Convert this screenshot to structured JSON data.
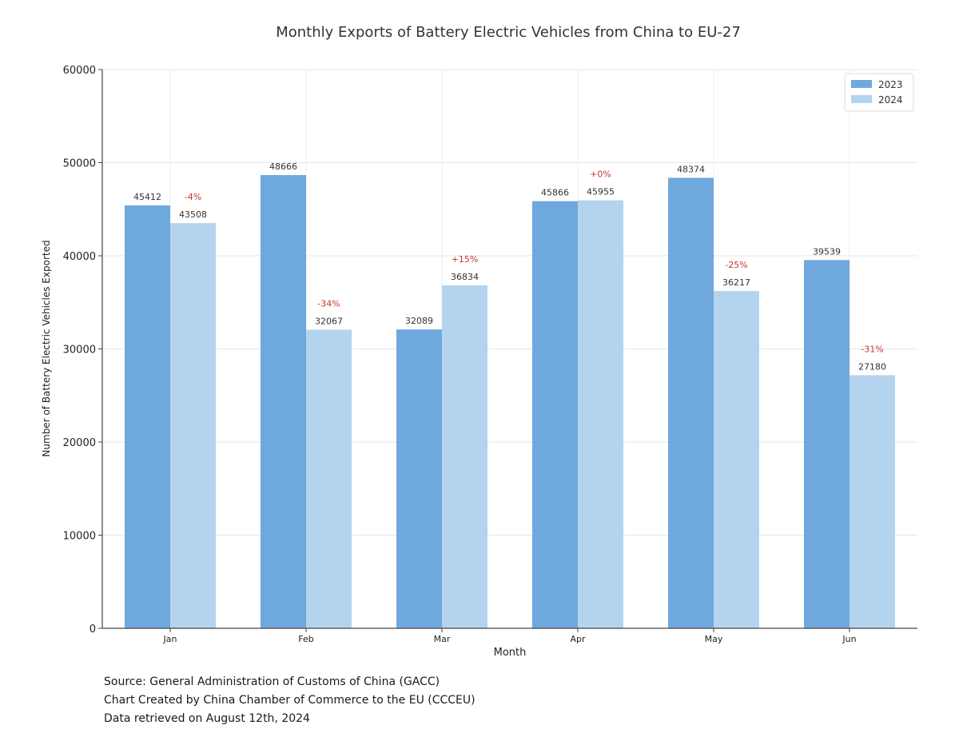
{
  "chart_data": {
    "type": "bar",
    "title": "Monthly Exports of Battery Electric Vehicles from China to EU-27",
    "xlabel": "Month",
    "ylabel": "Number of Battery Electric Vehicles Exported",
    "categories": [
      "Jan",
      "Feb",
      "Mar",
      "Apr",
      "May",
      "Jun"
    ],
    "series": [
      {
        "name": "2023",
        "values": [
          45412,
          48666,
          32089,
          45866,
          48374,
          39539
        ],
        "color": "#6fa8dc"
      },
      {
        "name": "2024",
        "values": [
          43508,
          32067,
          36834,
          45955,
          36217,
          27180
        ],
        "color": "#b4d3ee"
      }
    ],
    "change_labels": [
      "-4%",
      "-34%",
      "+15%",
      "+0%",
      "-25%",
      "-31%"
    ],
    "change_color": "#cc3333",
    "ylim": [
      0,
      60000
    ],
    "yticks": [
      0,
      10000,
      20000,
      30000,
      40000,
      50000,
      60000
    ],
    "grid": true,
    "legend_position": "top-right"
  },
  "footer": {
    "source": "Source: General Administration of Customs of China (GACC)",
    "created_by": "Chart Created by China Chamber of Commerce to the EU (CCCEU)",
    "retrieved": "Data retrieved on August 12th, 2024"
  }
}
